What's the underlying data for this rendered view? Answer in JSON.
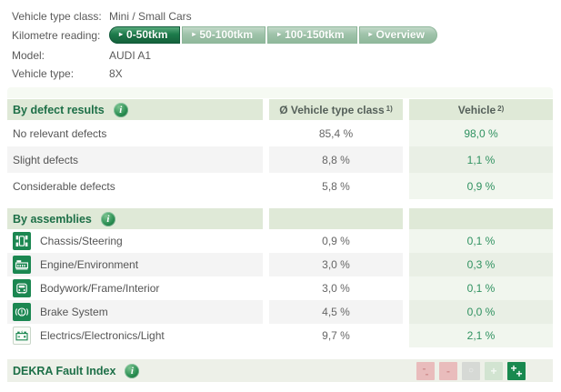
{
  "info_panel": {
    "rows": [
      {
        "label": "Vehicle type class:",
        "value": "Mini / Small Cars"
      },
      {
        "label": "Kilometre reading:",
        "value": ""
      },
      {
        "label": "Model:",
        "value": "AUDI A1"
      },
      {
        "label": "Vehicle type:",
        "value": "8X"
      }
    ],
    "km_buttons": [
      {
        "label": "0-50tkm",
        "active": true
      },
      {
        "label": "50-100tkm",
        "active": false
      },
      {
        "label": "100-150tkm",
        "active": false
      },
      {
        "label": "Overview",
        "active": false
      }
    ],
    "button_arrow": "▸"
  },
  "defects": {
    "section_title": "By defect results",
    "info_icon": "i",
    "col2_header": "Ø Vehicle type class",
    "col2_footnote": "1)",
    "col3_header": "Vehicle",
    "col3_footnote": "2)",
    "rows": [
      {
        "label": "No relevant defects",
        "type_class": "85,4 %",
        "vehicle": "98,0 %"
      },
      {
        "label": "Slight defects",
        "type_class": "8,8 %",
        "vehicle": "1,1 %"
      },
      {
        "label": "Considerable defects",
        "type_class": "5,8 %",
        "vehicle": "0,9 %"
      }
    ]
  },
  "assemblies": {
    "section_title": "By assemblies",
    "info_icon": "i",
    "rows": [
      {
        "icon": "chassis-steering-icon",
        "label": "Chassis/Steering",
        "type_class": "0,9 %",
        "vehicle": "0,1 %"
      },
      {
        "icon": "engine-environment-icon",
        "label": "Engine/Environment",
        "type_class": "3,0 %",
        "vehicle": "0,3 %"
      },
      {
        "icon": "bodywork-frame-interior-icon",
        "label": "Bodywork/Frame/Interior",
        "type_class": "3,0 %",
        "vehicle": "0,1 %"
      },
      {
        "icon": "brake-system-icon",
        "label": "Brake System",
        "type_class": "4,5 %",
        "vehicle": "0,0 %"
      },
      {
        "icon": "battery-electrics-icon",
        "label": "Electrics/Electronics/Light",
        "type_class": "9,7 %",
        "vehicle": "2,1 %"
      }
    ]
  },
  "fault_index": {
    "title": "DEKRA Fault Index",
    "info_icon": "i",
    "scale": [
      {
        "label": "--",
        "grade": "minus2",
        "active": false
      },
      {
        "label": "-",
        "grade": "minus",
        "active": false
      },
      {
        "label": "○",
        "grade": "zero",
        "active": false
      },
      {
        "label": "+",
        "grade": "plus",
        "active": false
      },
      {
        "label": "++",
        "grade": "plus2",
        "active": true
      }
    ]
  },
  "colors": {
    "accent_dark_green": "#1b8751",
    "header_bg": "#dfe9d7",
    "vehicle_value_green": "#2f9160",
    "active_button_green": "#15623c",
    "badge_red_bg": "#e9bcbc",
    "fault_bar_bg": "#edf0e8"
  }
}
